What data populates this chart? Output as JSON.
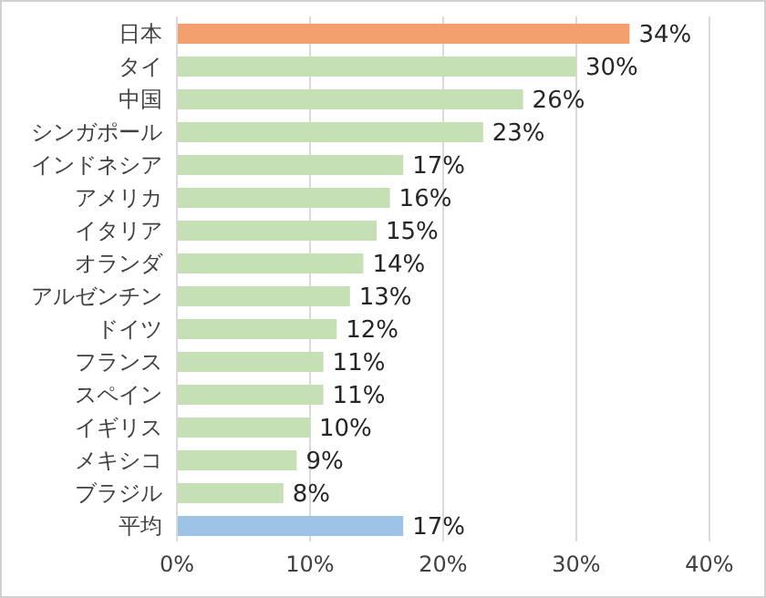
{
  "chart_data": {
    "type": "bar",
    "orientation": "horizontal",
    "categories": [
      "日本",
      "タイ",
      "中国",
      "シンガポール",
      "インドネシア",
      "アメリカ",
      "イタリア",
      "オランダ",
      "アルゼンチン",
      "ドイツ",
      "フランス",
      "スペイン",
      "イギリス",
      "メキシコ",
      "ブラジル",
      "平均"
    ],
    "values": [
      34,
      30,
      26,
      23,
      17,
      16,
      15,
      14,
      13,
      12,
      11,
      11,
      10,
      9,
      8,
      17
    ],
    "colors": [
      "#f4a06e",
      "#c5e0b4",
      "#c5e0b4",
      "#c5e0b4",
      "#c5e0b4",
      "#c5e0b4",
      "#c5e0b4",
      "#c5e0b4",
      "#c5e0b4",
      "#c5e0b4",
      "#c5e0b4",
      "#c5e0b4",
      "#c5e0b4",
      "#c5e0b4",
      "#c5e0b4",
      "#9dc3e6"
    ],
    "value_labels": [
      "34%",
      "30%",
      "26%",
      "23%",
      "17%",
      "16%",
      "15%",
      "14%",
      "13%",
      "12%",
      "11%",
      "11%",
      "10%",
      "9%",
      "8%",
      "17%"
    ],
    "xlim": [
      0,
      40
    ],
    "xticks": [
      {
        "value": 0,
        "label": "0%"
      },
      {
        "value": 10,
        "label": "10%"
      },
      {
        "value": 20,
        "label": "20%"
      },
      {
        "value": 30,
        "label": "30%"
      },
      {
        "value": 40,
        "label": "40%"
      }
    ],
    "grid": "x"
  }
}
